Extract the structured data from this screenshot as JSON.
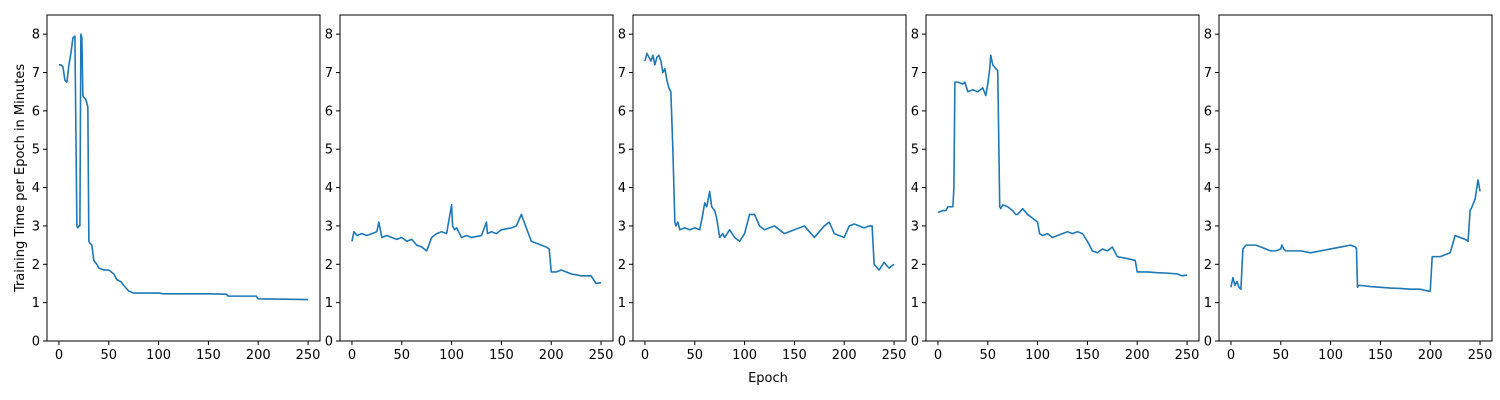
{
  "figure": {
    "ylabel": "Training Time per Epoch in Minutes",
    "xlabel": "Epoch"
  },
  "style": {
    "line_color": "#1f77b4",
    "axis_color": "#000000",
    "background": "#ffffff"
  },
  "chart_data": [
    {
      "type": "line",
      "xlabel": "",
      "ylabel": "Training Time per Epoch in Minutes",
      "xlim": [
        -12,
        262
      ],
      "ylim": [
        0,
        8.5
      ],
      "xticks": [
        0,
        50,
        100,
        150,
        200,
        250
      ],
      "yticks": [
        0,
        1,
        2,
        3,
        4,
        5,
        6,
        7,
        8
      ],
      "grid": false,
      "series": [
        {
          "x": [
            0,
            2,
            4,
            6,
            8,
            10,
            12,
            14,
            16,
            18,
            19,
            20,
            21,
            22,
            23,
            24,
            25,
            27,
            29,
            30,
            31,
            33,
            35,
            38,
            40,
            45,
            50,
            55,
            58,
            62,
            65,
            70,
            75,
            100,
            105,
            120,
            150,
            168,
            170,
            198,
            200,
            250
          ],
          "y": [
            7.2,
            7.2,
            7.15,
            6.8,
            6.75,
            7.2,
            7.5,
            7.9,
            7.95,
            3.0,
            2.95,
            3.0,
            3.0,
            8.0,
            7.9,
            6.4,
            6.35,
            6.3,
            6.1,
            2.6,
            2.55,
            2.5,
            2.1,
            2.0,
            1.9,
            1.85,
            1.85,
            1.75,
            1.6,
            1.55,
            1.45,
            1.3,
            1.25,
            1.25,
            1.23,
            1.23,
            1.23,
            1.22,
            1.17,
            1.17,
            1.1,
            1.08
          ]
        }
      ]
    },
    {
      "type": "line",
      "xlabel": "",
      "ylabel": "",
      "xlim": [
        -12,
        262
      ],
      "ylim": [
        0,
        8.5
      ],
      "xticks": [
        0,
        50,
        100,
        150,
        200,
        250
      ],
      "yticks": [
        0,
        1,
        2,
        3,
        4,
        5,
        6,
        7,
        8
      ],
      "grid": false,
      "series": [
        {
          "x": [
            0,
            2,
            5,
            10,
            15,
            20,
            25,
            27,
            30,
            35,
            40,
            45,
            50,
            55,
            60,
            65,
            70,
            75,
            80,
            85,
            90,
            95,
            100,
            101,
            103,
            105,
            110,
            115,
            120,
            130,
            135,
            136,
            140,
            145,
            150,
            160,
            165,
            170,
            175,
            180,
            190,
            195,
            198,
            200,
            205,
            210,
            220,
            230,
            240,
            245,
            250
          ],
          "y": [
            2.6,
            2.85,
            2.75,
            2.8,
            2.75,
            2.8,
            2.85,
            3.1,
            2.7,
            2.75,
            2.7,
            2.65,
            2.7,
            2.6,
            2.65,
            2.5,
            2.45,
            2.35,
            2.7,
            2.8,
            2.85,
            2.8,
            3.55,
            3.0,
            2.9,
            2.95,
            2.7,
            2.75,
            2.7,
            2.75,
            3.1,
            2.8,
            2.85,
            2.8,
            2.9,
            2.95,
            3.0,
            3.3,
            2.95,
            2.6,
            2.5,
            2.45,
            2.4,
            1.8,
            1.8,
            1.85,
            1.75,
            1.7,
            1.7,
            1.5,
            1.52
          ]
        }
      ]
    },
    {
      "type": "line",
      "xlabel": "Epoch",
      "ylabel": "",
      "xlim": [
        -12,
        262
      ],
      "ylim": [
        0,
        8.5
      ],
      "xticks": [
        0,
        50,
        100,
        150,
        200,
        250
      ],
      "yticks": [
        0,
        1,
        2,
        3,
        4,
        5,
        6,
        7,
        8
      ],
      "grid": false,
      "series": [
        {
          "x": [
            0,
            2,
            4,
            6,
            8,
            10,
            12,
            14,
            16,
            18,
            20,
            22,
            24,
            26,
            28,
            30,
            31,
            33,
            35,
            40,
            45,
            50,
            55,
            58,
            60,
            62,
            65,
            67,
            70,
            72,
            75,
            78,
            80,
            85,
            90,
            95,
            100,
            105,
            110,
            115,
            120,
            130,
            140,
            150,
            160,
            170,
            180,
            185,
            190,
            200,
            205,
            210,
            220,
            225,
            228,
            230,
            235,
            240,
            245,
            250
          ],
          "y": [
            7.3,
            7.5,
            7.4,
            7.3,
            7.45,
            7.2,
            7.4,
            7.45,
            7.3,
            7.0,
            7.1,
            6.8,
            6.6,
            6.5,
            5.0,
            3.1,
            3.0,
            3.1,
            2.9,
            2.95,
            2.9,
            2.95,
            2.9,
            3.3,
            3.6,
            3.5,
            3.9,
            3.5,
            3.4,
            3.2,
            2.7,
            2.8,
            2.7,
            2.9,
            2.7,
            2.6,
            2.8,
            3.3,
            3.3,
            3.0,
            2.9,
            3.0,
            2.8,
            2.9,
            3.0,
            2.7,
            3.0,
            3.1,
            2.8,
            2.7,
            3.0,
            3.05,
            2.95,
            3.0,
            3.0,
            2.0,
            1.85,
            2.05,
            1.9,
            2.0
          ]
        }
      ]
    },
    {
      "type": "line",
      "xlabel": "",
      "ylabel": "",
      "xlim": [
        -12,
        262
      ],
      "ylim": [
        0,
        8.5
      ],
      "xticks": [
        0,
        50,
        100,
        150,
        200,
        250
      ],
      "yticks": [
        0,
        1,
        2,
        3,
        4,
        5,
        6,
        7,
        8
      ],
      "grid": false,
      "series": [
        {
          "x": [
            0,
            5,
            8,
            10,
            15,
            16,
            17,
            20,
            25,
            27,
            30,
            35,
            40,
            45,
            48,
            50,
            52,
            53,
            55,
            58,
            60,
            62,
            63,
            65,
            70,
            75,
            78,
            80,
            85,
            90,
            95,
            100,
            102,
            105,
            110,
            115,
            120,
            125,
            130,
            135,
            140,
            145,
            150,
            155,
            160,
            165,
            170,
            175,
            180,
            190,
            198,
            200,
            210,
            220,
            230,
            240,
            245,
            250
          ],
          "y": [
            3.35,
            3.4,
            3.4,
            3.5,
            3.5,
            4.0,
            6.75,
            6.75,
            6.7,
            6.75,
            6.5,
            6.55,
            6.5,
            6.6,
            6.4,
            6.7,
            7.1,
            7.45,
            7.2,
            7.1,
            7.05,
            3.5,
            3.45,
            3.55,
            3.5,
            3.4,
            3.3,
            3.3,
            3.45,
            3.3,
            3.2,
            3.1,
            2.8,
            2.75,
            2.8,
            2.7,
            2.75,
            2.8,
            2.85,
            2.8,
            2.85,
            2.8,
            2.6,
            2.35,
            2.3,
            2.4,
            2.35,
            2.45,
            2.2,
            2.15,
            2.1,
            1.8,
            1.8,
            1.78,
            1.77,
            1.75,
            1.7,
            1.72
          ]
        }
      ]
    },
    {
      "type": "line",
      "xlabel": "",
      "ylabel": "",
      "xlim": [
        -12,
        262
      ],
      "ylim": [
        0,
        8.5
      ],
      "xticks": [
        0,
        50,
        100,
        150,
        200,
        250
      ],
      "yticks": [
        0,
        1,
        2,
        3,
        4,
        5,
        6,
        7,
        8
      ],
      "grid": false,
      "series": [
        {
          "x": [
            0,
            2,
            4,
            6,
            8,
            10,
            12,
            15,
            20,
            25,
            30,
            35,
            40,
            45,
            50,
            51,
            53,
            55,
            60,
            70,
            80,
            90,
            100,
            110,
            120,
            125,
            126,
            127,
            128,
            130,
            140,
            150,
            160,
            170,
            180,
            190,
            198,
            200,
            202,
            205,
            210,
            215,
            220,
            225,
            230,
            235,
            238,
            240,
            242,
            245,
            248,
            250
          ],
          "y": [
            1.4,
            1.65,
            1.45,
            1.55,
            1.4,
            1.35,
            2.4,
            2.5,
            2.5,
            2.5,
            2.45,
            2.4,
            2.35,
            2.35,
            2.4,
            2.5,
            2.4,
            2.35,
            2.35,
            2.35,
            2.3,
            2.35,
            2.4,
            2.45,
            2.5,
            2.45,
            2.4,
            1.4,
            1.45,
            1.45,
            1.42,
            1.4,
            1.38,
            1.37,
            1.35,
            1.35,
            1.3,
            1.3,
            2.2,
            2.2,
            2.2,
            2.25,
            2.3,
            2.75,
            2.7,
            2.65,
            2.6,
            3.4,
            3.5,
            3.7,
            4.2,
            3.9
          ]
        }
      ]
    }
  ]
}
